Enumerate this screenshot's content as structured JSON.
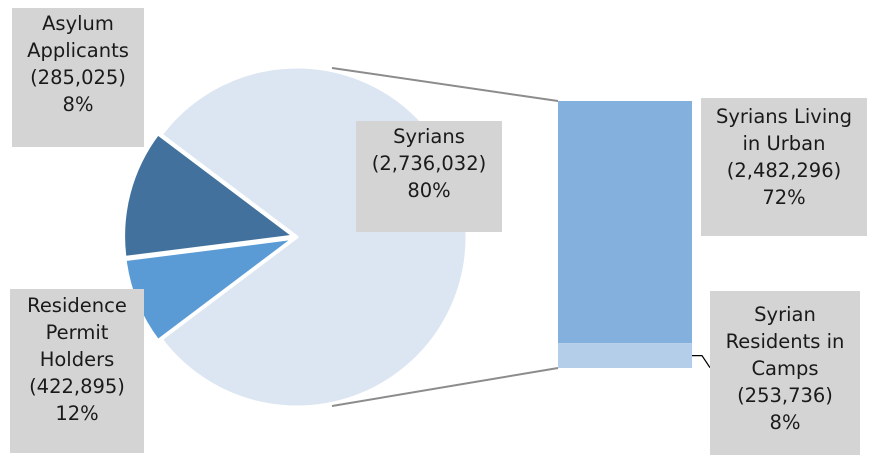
{
  "chart_data": {
    "type": "pie",
    "title": "",
    "slices": [
      {
        "name": "Syrians",
        "value": 2736032,
        "percent": "80%",
        "value_label": "(2,736,032)",
        "color": "#dce6f2"
      },
      {
        "name": "Asylum Applicants",
        "value": 285025,
        "percent": "8%",
        "value_label": "(285,025)",
        "color": "#5b9bd5"
      },
      {
        "name": "Residence Permit Holders",
        "value": 422895,
        "percent": "12%",
        "value_label": "(422,895)",
        "color": "#41719c"
      }
    ],
    "breakdown": {
      "of": "Syrians",
      "type": "stacked-bar",
      "segments": [
        {
          "name": "Syrians Living in Urban",
          "value": 2482296,
          "percent": "72%",
          "value_label": "(2,482,296)",
          "color": "#84b0dd"
        },
        {
          "name": "Syrian Residents in Camps",
          "value": 253736,
          "percent": "8%",
          "value_label": "(253,736)",
          "color": "#b4cde9"
        }
      ]
    }
  },
  "labels": {
    "syrians": {
      "lines": [
        "Syrians",
        "(2,736,032)",
        "80%"
      ]
    },
    "asylum": {
      "lines": [
        "Asylum",
        "Applicants",
        "(285,025)",
        "8%"
      ]
    },
    "residence": {
      "lines": [
        "Residence",
        "Permit",
        "Holders",
        "(422,895)",
        "12%"
      ]
    },
    "urban": {
      "lines": [
        "Syrians Living",
        "in Urban",
        "(2,482,296)",
        "72%"
      ]
    },
    "camps": {
      "lines": [
        "Syrian",
        "Residents in",
        "Camps",
        "(253,736)",
        "8%"
      ]
    }
  },
  "colors": {
    "connector": "#8c8c8c",
    "label_bg": "#d4d4d4",
    "leader": "#000000"
  }
}
